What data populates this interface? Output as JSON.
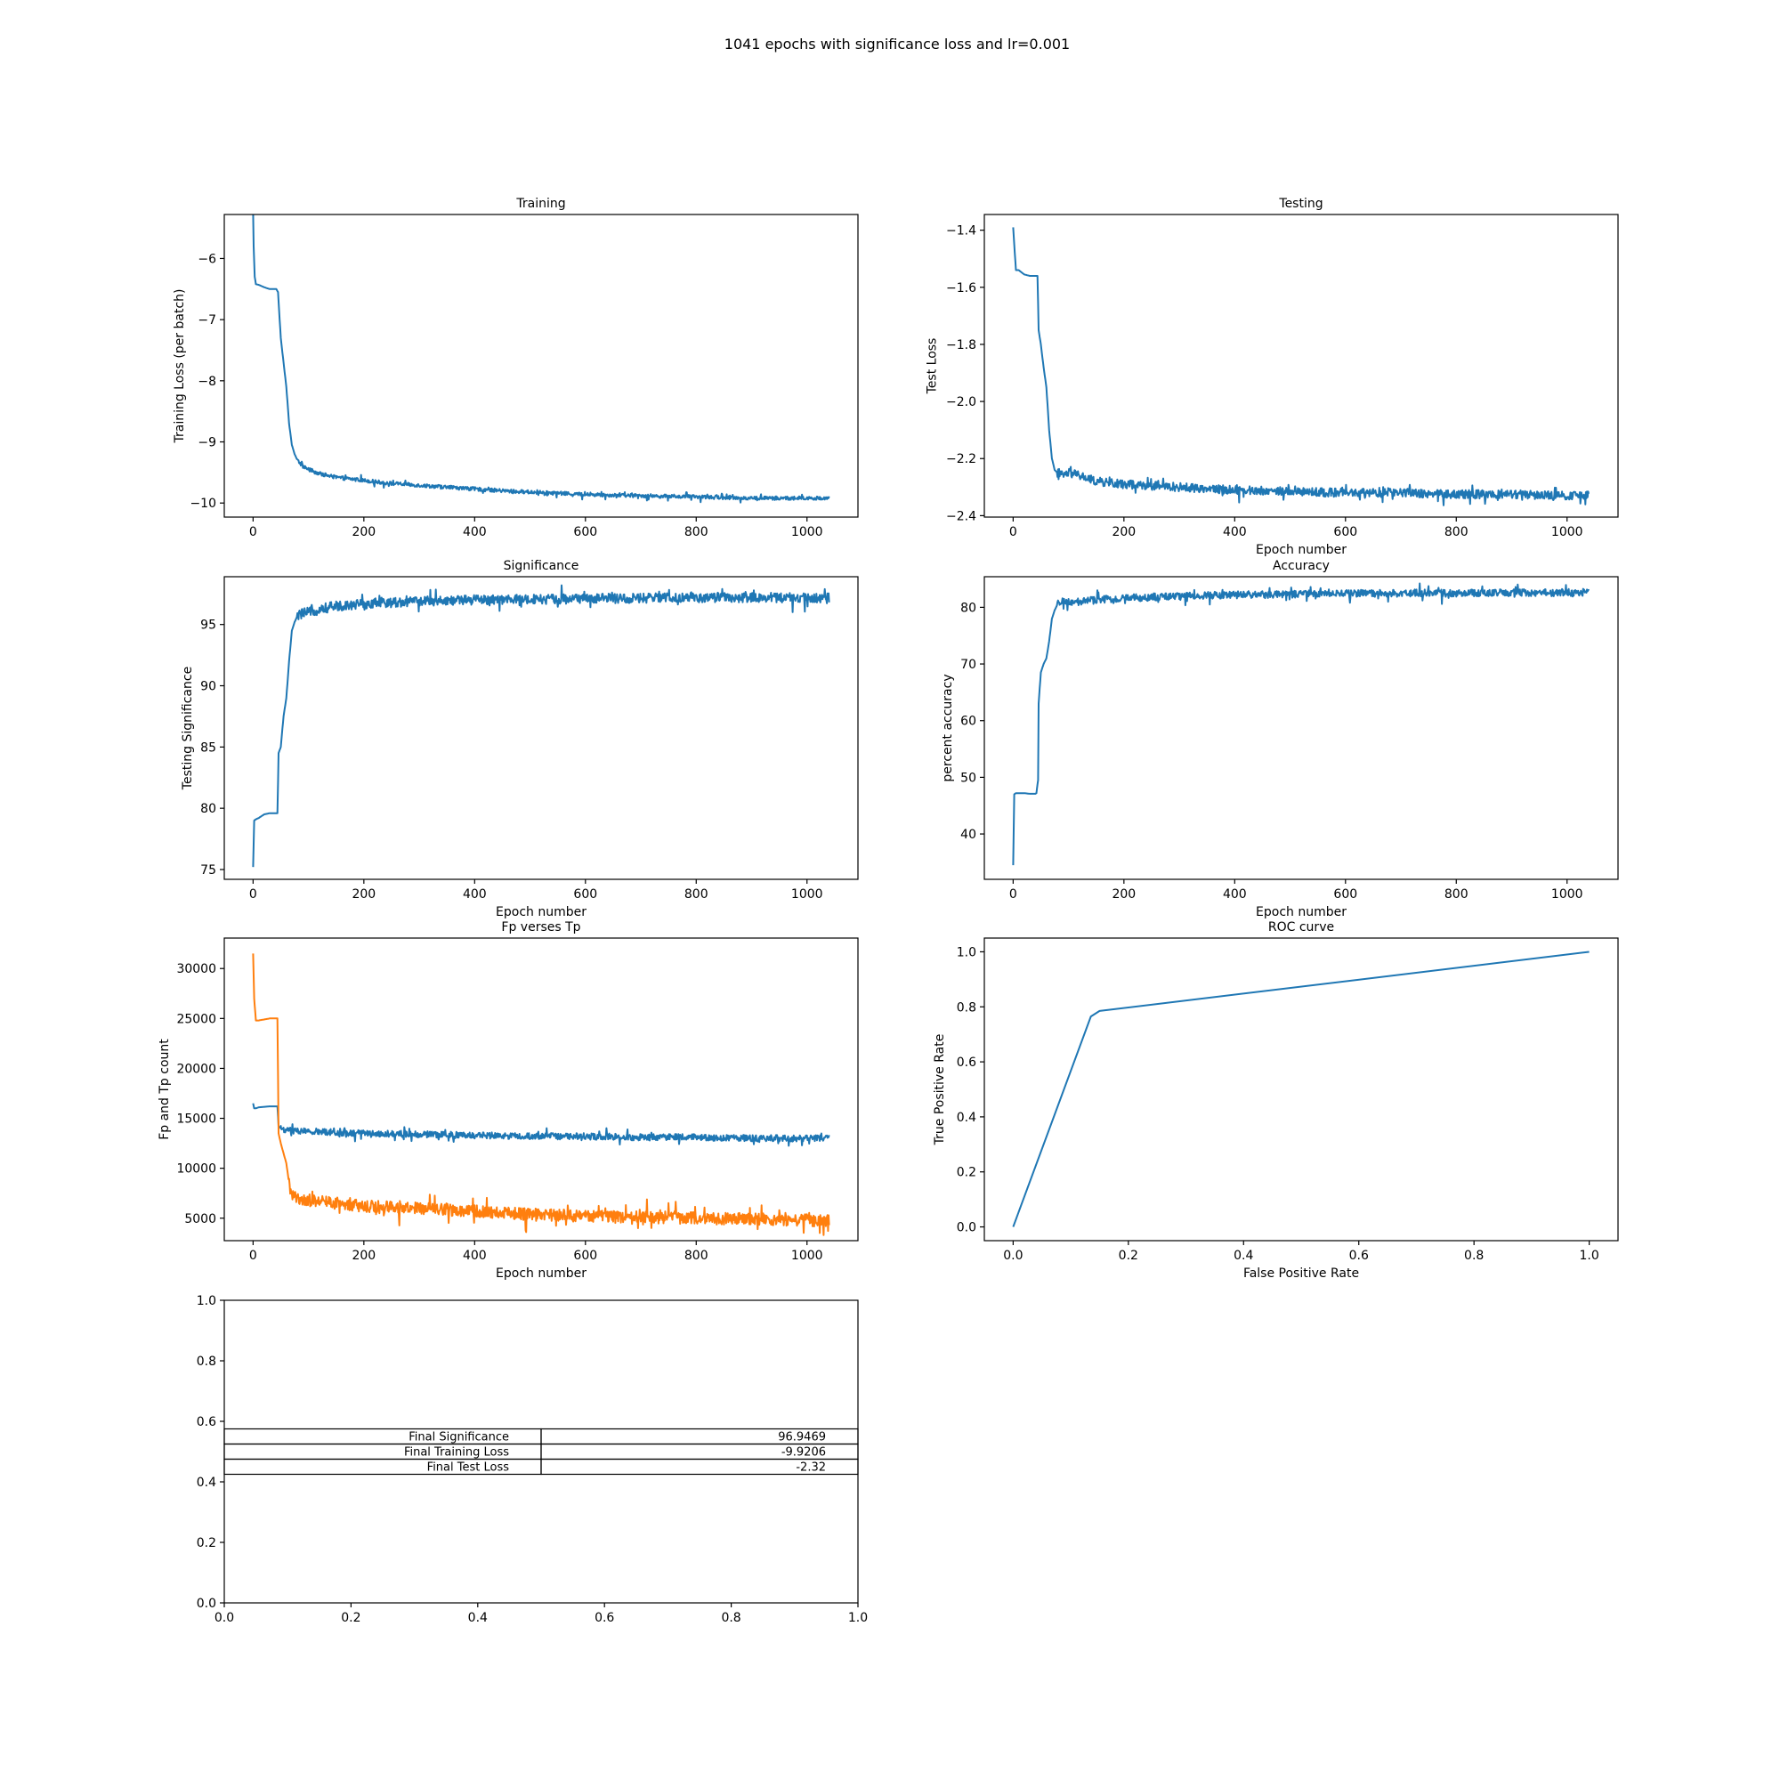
{
  "figure": {
    "title": "1041 epochs with significance loss and lr=0.001"
  },
  "colors": {
    "series1": "#1f77b4",
    "series2": "#ff7f0e",
    "axis": "#000000",
    "background": "#ffffff"
  },
  "chart_data": [
    {
      "id": "training",
      "type": "line",
      "title": "Training",
      "xlabel": "",
      "ylabel": "Training Loss (per batch)",
      "xlim": [
        -52,
        1092
      ],
      "ylim": [
        -10.23,
        -5.28
      ],
      "xticks": [
        0,
        200,
        400,
        600,
        800,
        1000
      ],
      "yticks": [
        -10,
        -9,
        -8,
        -7,
        -6
      ],
      "grid": false,
      "series": [
        {
          "color": "#1f77b4",
          "x": [
            0,
            1,
            3,
            5,
            10,
            20,
            30,
            40,
            42,
            45,
            50,
            55,
            60,
            65,
            70,
            75,
            80,
            90,
            100,
            120,
            150,
            200,
            250,
            300,
            350,
            400,
            450,
            500,
            550,
            600,
            650,
            700,
            750,
            800,
            850,
            900,
            950,
            1000,
            1040
          ],
          "y": [
            -5.25,
            -5.8,
            -6.3,
            -6.42,
            -6.43,
            -6.47,
            -6.5,
            -6.5,
            -6.5,
            -6.55,
            -7.3,
            -7.7,
            -8.1,
            -8.7,
            -9.05,
            -9.2,
            -9.3,
            -9.4,
            -9.45,
            -9.52,
            -9.58,
            -9.63,
            -9.68,
            -9.71,
            -9.74,
            -9.77,
            -9.8,
            -9.82,
            -9.84,
            -9.86,
            -9.87,
            -9.88,
            -9.89,
            -9.9,
            -9.91,
            -9.92,
            -9.92,
            -9.92,
            -9.92
          ],
          "noise": {
            "start": 80,
            "amplitude": 0.06,
            "step": 3
          }
        }
      ]
    },
    {
      "id": "testing",
      "type": "line",
      "title": "Testing",
      "xlabel": "Epoch number",
      "ylabel": "Test Loss",
      "xlim": [
        -52,
        1092
      ],
      "ylim": [
        -2.405,
        -1.345
      ],
      "xticks": [
        0,
        200,
        400,
        600,
        800,
        1000
      ],
      "yticks": [
        -2.4,
        -2.2,
        -2.0,
        -1.8,
        -1.6,
        -1.4
      ],
      "grid": false,
      "series": [
        {
          "color": "#1f77b4",
          "x": [
            0,
            2,
            5,
            10,
            20,
            30,
            40,
            44,
            46,
            50,
            55,
            60,
            65,
            70,
            75,
            80,
            90,
            100,
            120,
            150,
            200,
            300,
            400,
            500,
            600,
            700,
            800,
            900,
            1000,
            1040
          ],
          "y": [
            -1.39,
            -1.45,
            -1.54,
            -1.54,
            -1.555,
            -1.56,
            -1.56,
            -1.56,
            -1.75,
            -1.8,
            -1.88,
            -1.95,
            -2.1,
            -2.2,
            -2.24,
            -2.25,
            -2.26,
            -2.25,
            -2.26,
            -2.28,
            -2.29,
            -2.3,
            -2.31,
            -2.315,
            -2.32,
            -2.32,
            -2.325,
            -2.325,
            -2.33,
            -2.33
          ],
          "noise": {
            "start": 80,
            "amplitude": 0.03,
            "step": 3
          }
        }
      ]
    },
    {
      "id": "significance",
      "type": "line",
      "title": "Significance",
      "xlabel": "Epoch number",
      "ylabel": "Testing Significance",
      "xlim": [
        -52,
        1092
      ],
      "ylim": [
        74.2,
        98.9
      ],
      "xticks": [
        0,
        200,
        400,
        600,
        800,
        1000
      ],
      "yticks": [
        75,
        80,
        85,
        90,
        95
      ],
      "grid": false,
      "series": [
        {
          "color": "#1f77b4",
          "x": [
            0,
            2,
            5,
            10,
            20,
            30,
            40,
            44,
            46,
            50,
            55,
            60,
            65,
            70,
            75,
            80,
            90,
            100,
            120,
            150,
            200,
            300,
            400,
            500,
            600,
            700,
            800,
            900,
            1000,
            1040
          ],
          "y": [
            75.2,
            79,
            79.1,
            79.2,
            79.5,
            79.6,
            79.6,
            79.6,
            84.5,
            85,
            87.5,
            89,
            92,
            94.5,
            95.2,
            95.7,
            95.9,
            96,
            96.3,
            96.5,
            96.7,
            96.9,
            97,
            97.05,
            97.1,
            97.15,
            97.2,
            97.2,
            97.2,
            97.2
          ],
          "noise": {
            "start": 80,
            "amplitude": 0.8,
            "step": 3
          }
        }
      ]
    },
    {
      "id": "accuracy",
      "type": "line",
      "title": "Accuracy",
      "xlabel": "Epoch number",
      "ylabel": "percent accuracy",
      "xlim": [
        -52,
        1092
      ],
      "ylim": [
        32.0,
        85.4
      ],
      "xticks": [
        0,
        200,
        400,
        600,
        800,
        1000
      ],
      "yticks": [
        40,
        50,
        60,
        70,
        80
      ],
      "grid": false,
      "series": [
        {
          "color": "#1f77b4",
          "x": [
            0,
            2,
            5,
            10,
            20,
            30,
            40,
            42,
            45,
            46,
            50,
            55,
            60,
            65,
            70,
            75,
            80,
            90,
            100,
            120,
            150,
            200,
            300,
            400,
            500,
            600,
            700,
            800,
            900,
            1000,
            1040
          ],
          "y": [
            34.5,
            47,
            47.2,
            47.2,
            47.2,
            47.1,
            47.1,
            47.2,
            49.5,
            63,
            68.5,
            70,
            71,
            74,
            78,
            79.5,
            80.5,
            81,
            80.5,
            81,
            81.3,
            81.6,
            82,
            82.2,
            82.3,
            82.4,
            82.5,
            82.5,
            82.6,
            82.6,
            82.7
          ],
          "noise": {
            "start": 80,
            "amplitude": 1.3,
            "step": 3
          }
        }
      ]
    },
    {
      "id": "fptp",
      "type": "line",
      "title": "Fp verses Tp",
      "xlabel": "Epoch number",
      "ylabel": "Fp and Tp count",
      "xlim": [
        -52,
        1092
      ],
      "ylim": [
        2750,
        33050
      ],
      "xticks": [
        0,
        200,
        400,
        600,
        800,
        1000
      ],
      "yticks": [
        5000,
        10000,
        15000,
        20000,
        25000,
        30000
      ],
      "grid": false,
      "series": [
        {
          "color": "#1f77b4",
          "x": [
            0,
            2,
            5,
            10,
            20,
            30,
            40,
            44,
            46,
            50,
            60,
            80,
            100,
            150,
            200,
            300,
            400,
            500,
            600,
            700,
            800,
            900,
            1000,
            1040
          ],
          "y": [
            16500,
            16000,
            16000,
            16100,
            16150,
            16200,
            16200,
            16200,
            14200,
            14000,
            13800,
            13700,
            13700,
            13600,
            13500,
            13400,
            13300,
            13200,
            13200,
            13100,
            13100,
            13000,
            13000,
            13000
          ],
          "noise": {
            "start": 50,
            "amplitude": 650,
            "step": 3
          }
        },
        {
          "color": "#ff7f0e",
          "x": [
            0,
            2,
            5,
            10,
            20,
            30,
            40,
            44,
            46,
            50,
            55,
            60,
            65,
            70,
            80,
            100,
            150,
            200,
            300,
            400,
            500,
            600,
            700,
            800,
            900,
            1000,
            1040
          ],
          "y": [
            31500,
            27000,
            24800,
            24800,
            24900,
            25000,
            25000,
            25000,
            13500,
            12500,
            11500,
            10500,
            8500,
            7200,
            7000,
            6800,
            6500,
            6200,
            6000,
            5700,
            5400,
            5200,
            5100,
            5000,
            4900,
            4800,
            4700
          ],
          "noise": {
            "start": 65,
            "amplitude": 1200,
            "step": 3
          }
        }
      ]
    },
    {
      "id": "roc",
      "type": "line",
      "title": "ROC curve",
      "xlabel": "False Positive Rate",
      "ylabel": "True Positive Rate",
      "xlim": [
        -0.05,
        1.05
      ],
      "ylim": [
        -0.05,
        1.05
      ],
      "xticks": [
        0.0,
        0.2,
        0.4,
        0.6,
        0.8,
        1.0
      ],
      "yticks": [
        0.0,
        0.2,
        0.4,
        0.6,
        0.8,
        1.0
      ],
      "grid": false,
      "series": [
        {
          "color": "#1f77b4",
          "x": [
            0.0,
            0.135,
            0.15,
            1.0
          ],
          "y": [
            0.0,
            0.765,
            0.785,
            1.0
          ]
        }
      ]
    },
    {
      "id": "summary",
      "type": "table",
      "title": "",
      "xlim": [
        0.0,
        1.0
      ],
      "ylim": [
        0.0,
        1.0
      ],
      "xticks": [
        0.0,
        0.2,
        0.4,
        0.6,
        0.8,
        1.0
      ],
      "yticks": [
        0.0,
        0.2,
        0.4,
        0.6,
        0.8,
        1.0
      ],
      "rows": [
        {
          "label": "Final Significance",
          "value": "96.9469"
        },
        {
          "label": "Final Training Loss",
          "value": "-9.9206"
        },
        {
          "label": "Final Test Loss",
          "value": "-2.32"
        }
      ]
    }
  ]
}
